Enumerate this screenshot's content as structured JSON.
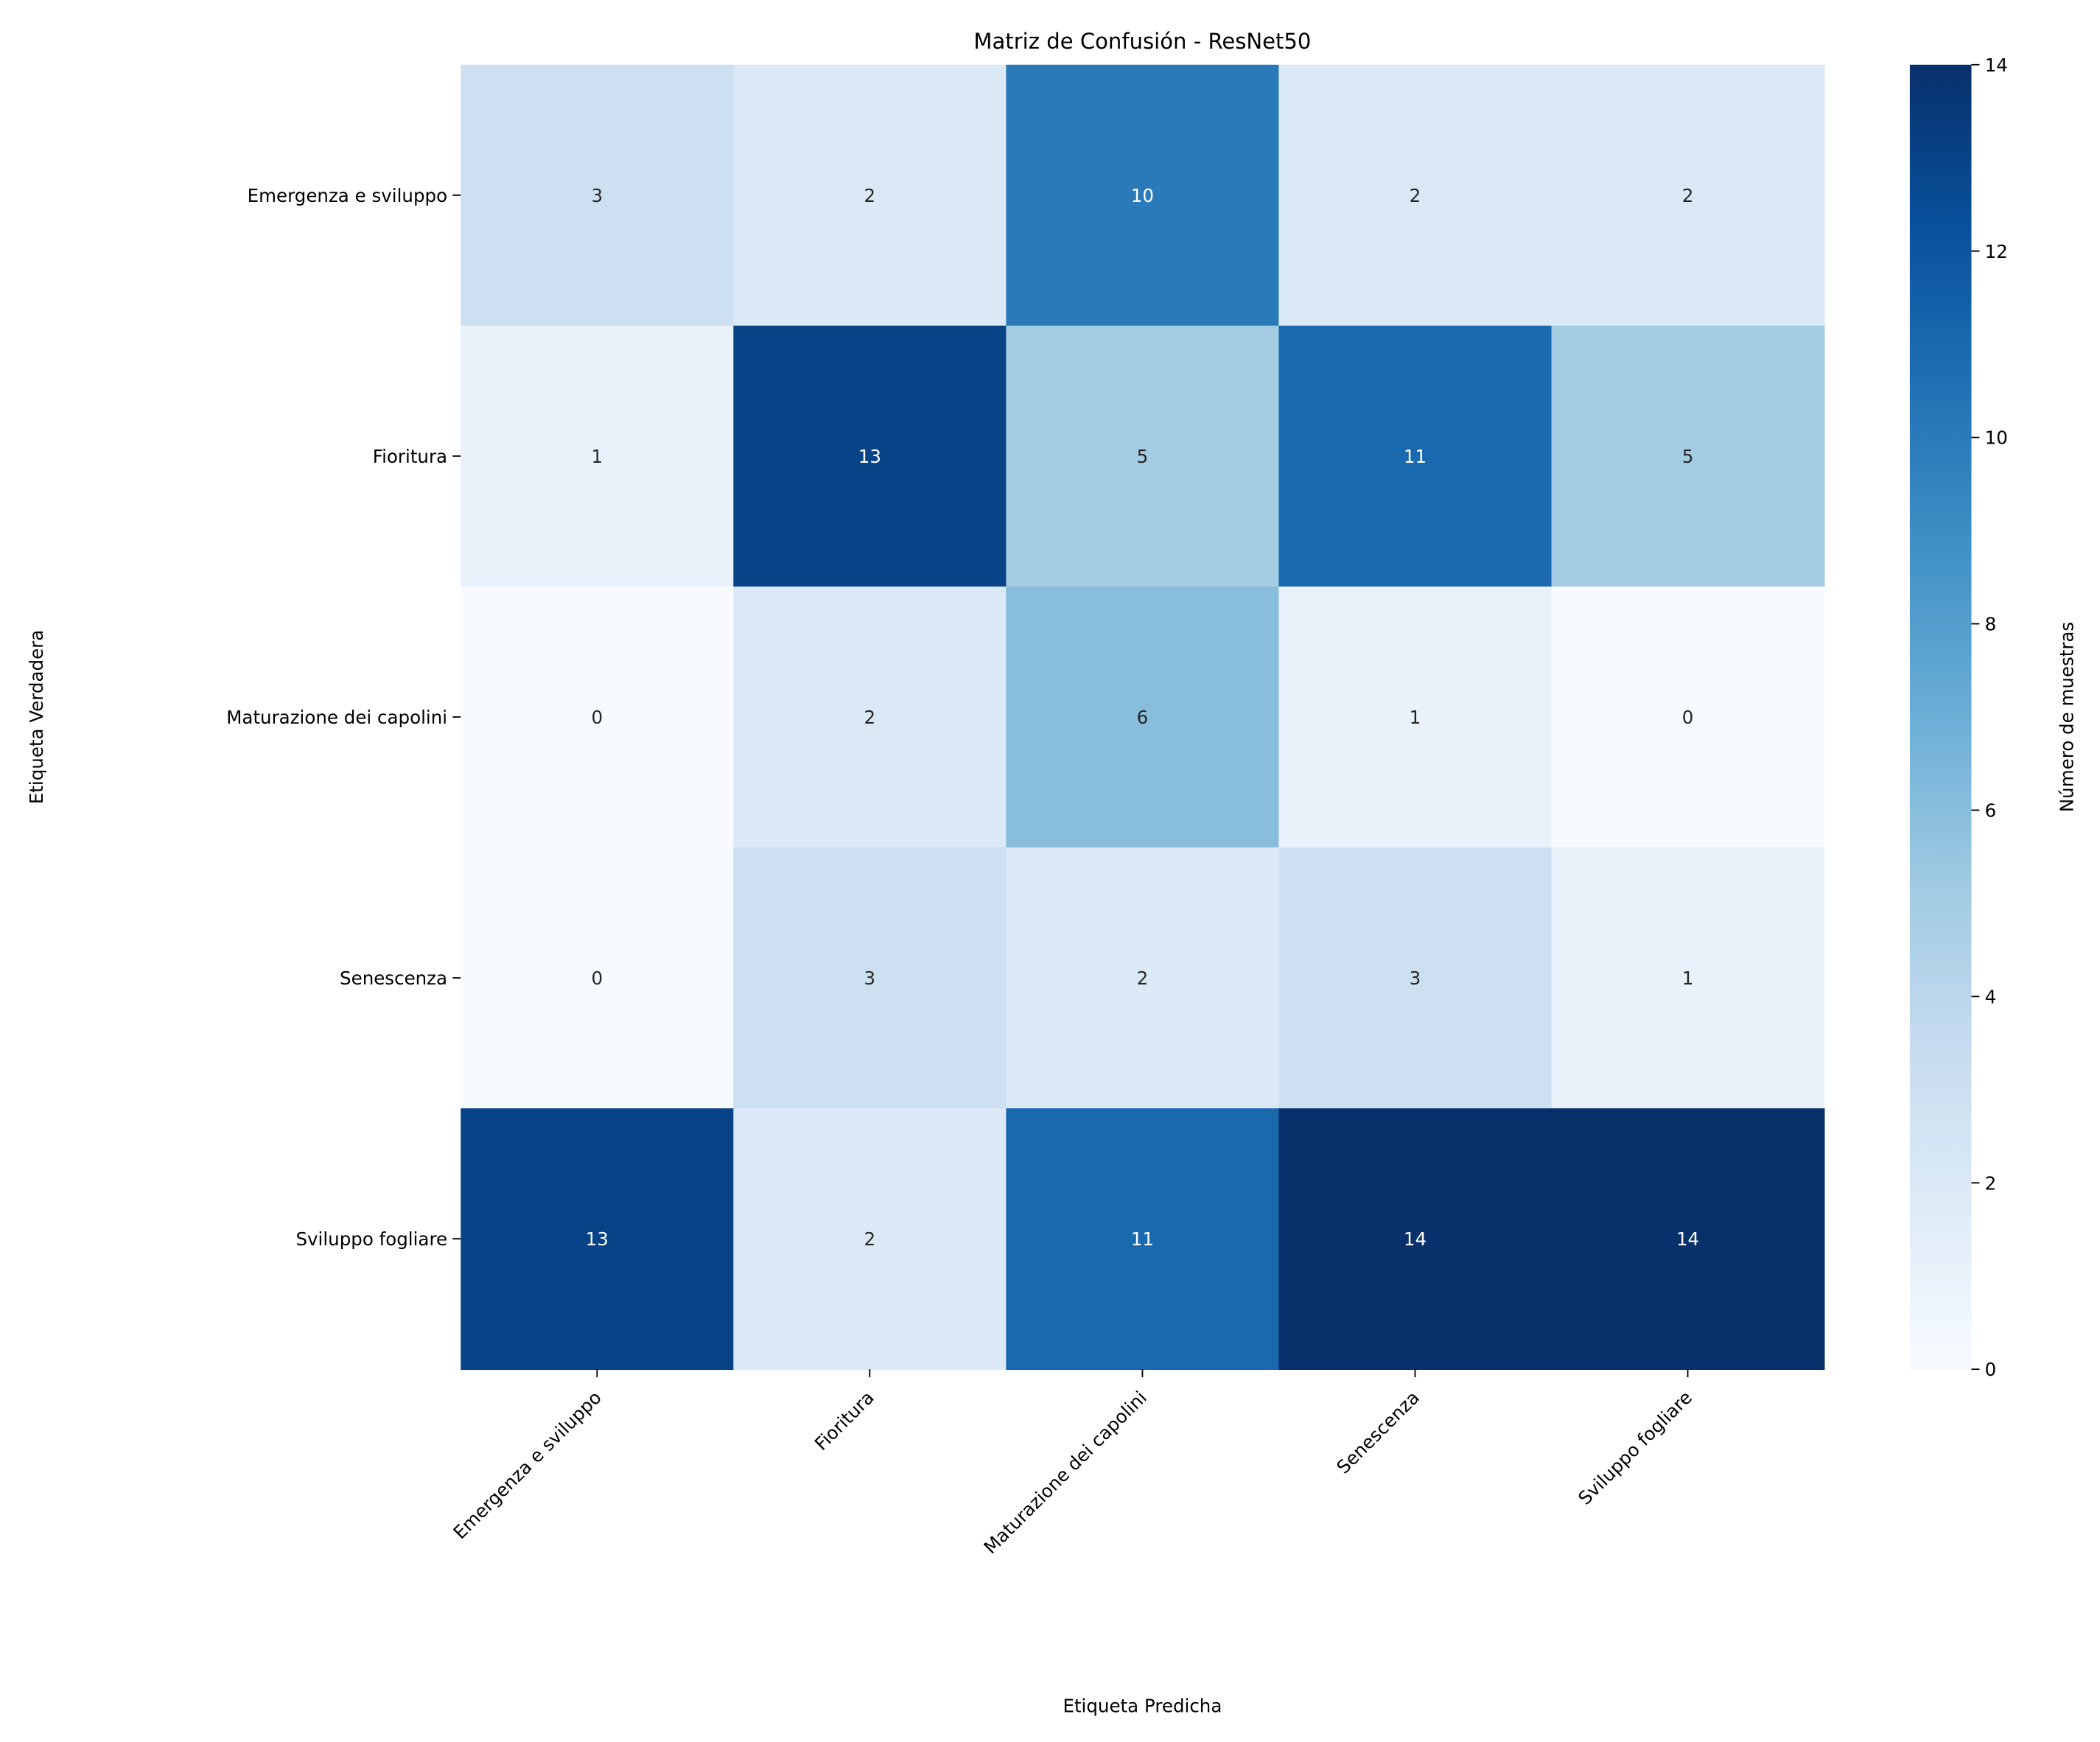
{
  "chart_data": {
    "type": "heatmap",
    "title": "Matriz de Confusión - ResNet50",
    "xlabel": "Etiqueta Predicha",
    "ylabel": "Etiqueta Verdadera",
    "x_categories": [
      "Emergenza e sviluppo",
      "Fioritura",
      "Maturazione dei capolini",
      "Senescenza",
      "Sviluppo fogliare"
    ],
    "y_categories": [
      "Emergenza e sviluppo",
      "Fioritura",
      "Maturazione dei capolini",
      "Senescenza",
      "Sviluppo fogliare"
    ],
    "values": [
      [
        3,
        2,
        10,
        2,
        2
      ],
      [
        1,
        13,
        5,
        11,
        5
      ],
      [
        0,
        2,
        6,
        1,
        0
      ],
      [
        0,
        3,
        2,
        3,
        1
      ],
      [
        13,
        2,
        11,
        14,
        14
      ]
    ],
    "colormap": "Blues",
    "colorbar_label": "Número de muestras",
    "clim": [
      0,
      14
    ],
    "cticks": [
      0,
      2,
      4,
      6,
      8,
      10,
      12,
      14
    ]
  }
}
